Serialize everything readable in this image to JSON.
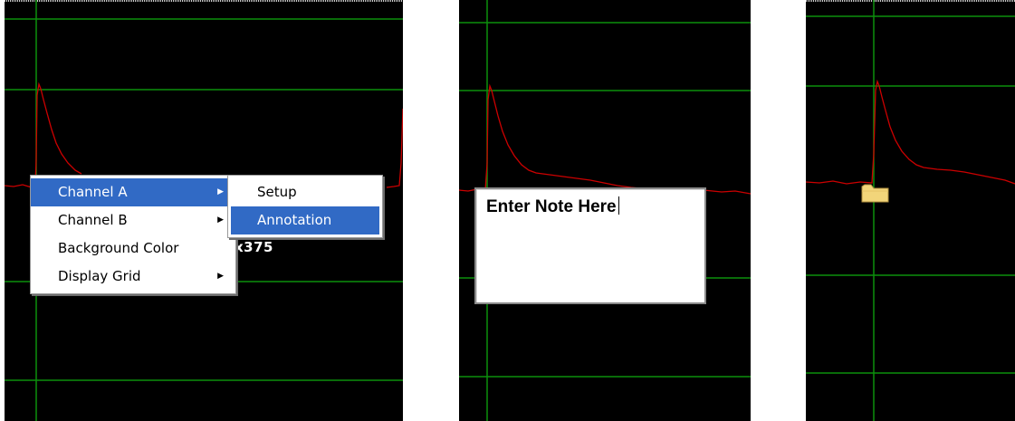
{
  "panel1": {
    "context_menu": {
      "items": [
        {
          "label": "Channel A",
          "has_submenu": true,
          "highlighted": true
        },
        {
          "label": "Channel B",
          "has_submenu": true,
          "highlighted": false
        },
        {
          "label": "Background Color",
          "has_submenu": false,
          "highlighted": false
        },
        {
          "label": "Display Grid",
          "has_submenu": true,
          "highlighted": false
        }
      ],
      "submenu": {
        "items": [
          {
            "label": "Setup",
            "highlighted": false
          },
          {
            "label": "Annotation",
            "highlighted": true
          }
        ]
      }
    },
    "readout_text": "x375"
  },
  "panel2": {
    "note": {
      "placeholder_text": "Enter Note Here"
    }
  },
  "panel3": {
    "annotation_marker": "folder-icon"
  },
  "colors": {
    "background": "#000000",
    "grid": "#0c8f0c",
    "trace": "#cc0000",
    "menu_highlight": "#316ac5",
    "folder": "#f2d57a"
  }
}
